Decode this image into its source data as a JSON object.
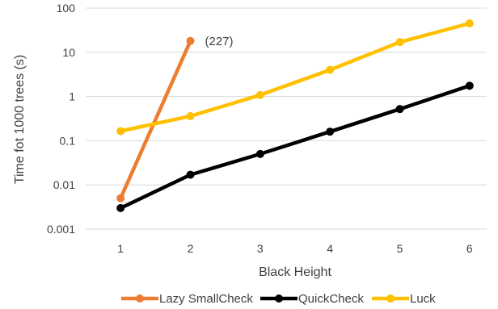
{
  "chart_data": {
    "type": "line",
    "xlabel": "Black Height",
    "ylabel": "Time fot 1000 trees (s)",
    "yscale": "log",
    "ylim": [
      0.001,
      100
    ],
    "xlim": [
      0.5,
      6.5
    ],
    "x_ticks": [
      1,
      2,
      3,
      4,
      5,
      6
    ],
    "y_ticks": [
      {
        "value": 0.001,
        "label": "0.001"
      },
      {
        "value": 0.01,
        "label": "0.01"
      },
      {
        "value": 0.1,
        "label": "0.1"
      },
      {
        "value": 1,
        "label": "1"
      },
      {
        "value": 10,
        "label": "10"
      },
      {
        "value": 100,
        "label": "100"
      }
    ],
    "grid": "horizontal",
    "legend_position": "bottom",
    "series": [
      {
        "name": "Lazy SmallCheck",
        "color": "#ED7D31",
        "x": [
          1,
          2
        ],
        "y": [
          0.005,
          18
        ]
      },
      {
        "name": "QuickCheck",
        "color": "#000000",
        "x": [
          1,
          2,
          3,
          4,
          5,
          6
        ],
        "y": [
          0.003,
          0.017,
          0.05,
          0.16,
          0.52,
          1.75
        ]
      },
      {
        "name": "Luck",
        "color": "#FFC000",
        "x": [
          1,
          2,
          3,
          4,
          5,
          6
        ],
        "y": [
          0.165,
          0.36,
          1.08,
          4.0,
          17,
          45
        ]
      }
    ],
    "annotations": [
      {
        "text": "(227)",
        "series": "Lazy SmallCheck",
        "x": 2,
        "y": 18
      }
    ]
  }
}
